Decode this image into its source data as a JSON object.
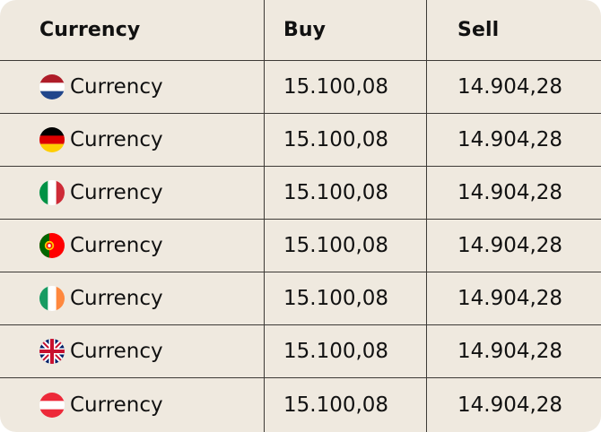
{
  "table": {
    "headers": {
      "currency": "Currency",
      "buy": "Buy",
      "sell": "Sell"
    },
    "rows": [
      {
        "flag": "netherlands-flag-icon",
        "currency": "Currency",
        "buy": "15.100,08",
        "sell": "14.904,28"
      },
      {
        "flag": "germany-flag-icon",
        "currency": "Currency",
        "buy": "15.100,08",
        "sell": "14.904,28"
      },
      {
        "flag": "italy-flag-icon",
        "currency": "Currency",
        "buy": "15.100,08",
        "sell": "14.904,28"
      },
      {
        "flag": "portugal-flag-icon",
        "currency": "Currency",
        "buy": "15.100,08",
        "sell": "14.904,28"
      },
      {
        "flag": "ireland-flag-icon",
        "currency": "Currency",
        "buy": "15.100,08",
        "sell": "14.904,28"
      },
      {
        "flag": "united-kingdom-flag-icon",
        "currency": "Currency",
        "buy": "15.100,08",
        "sell": "14.904,28"
      },
      {
        "flag": "austria-flag-icon",
        "currency": "Currency",
        "buy": "15.100,08",
        "sell": "14.904,28"
      }
    ]
  },
  "colors": {
    "background": "#efe9df",
    "divider": "#3d3a36",
    "text": "#111111"
  }
}
